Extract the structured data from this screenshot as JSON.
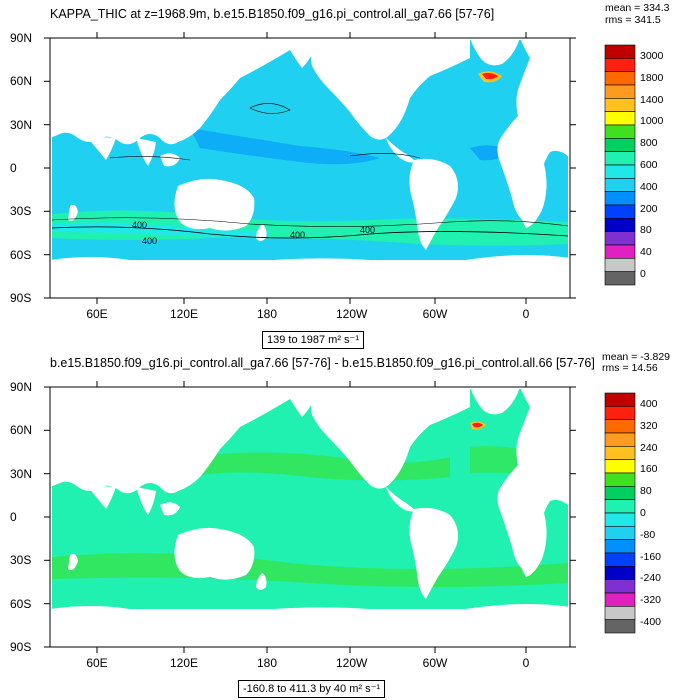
{
  "panel1": {
    "title": "KAPPA_THIC at z=1968.9m, b.e15.B1850.f09_g16.pi_control.all_ga7.66 [57-76]",
    "mean_text": "mean = 334.3",
    "rms_text": "rms = 341.5",
    "range_box": "139 to 1987 m² s⁻¹",
    "contour_labels": [
      "400",
      "400",
      "400",
      "400"
    ],
    "colorbar": {
      "labels": [
        "3000",
        "1800",
        "1400",
        "1000",
        "800",
        "600",
        "400",
        "200",
        "80",
        "40",
        "0"
      ],
      "colors": [
        "#c00000",
        "#ff2010",
        "#ff6a00",
        "#ff9a20",
        "#ffc020",
        "#ffff00",
        "#40e020",
        "#00d060",
        "#20f0b0",
        "#20e8e8",
        "#20d0f0",
        "#0090ff",
        "#0040ff",
        "#0000c8",
        "#8030d0",
        "#e020c0",
        "#c8c8c8",
        "#646464"
      ]
    }
  },
  "panel2": {
    "title": "b.e15.B1850.f09_g16.pi_control.all_ga7.66 [57-76] - b.e15.B1850.f09_g16.pi_control.all.66 [57-76]",
    "mean_text": "mean = -3.829",
    "rms_text": "rms = 14.56",
    "range_box": "-160.8 to 411.3 by 40 m² s⁻¹",
    "colorbar": {
      "labels": [
        "400",
        "320",
        "240",
        "160",
        "80",
        "0",
        "-80",
        "-160",
        "-240",
        "-320",
        "-400"
      ],
      "colors": [
        "#c00000",
        "#ff2010",
        "#ff6a00",
        "#ff9a20",
        "#ffc020",
        "#ffff00",
        "#40e020",
        "#00d060",
        "#20f0b0",
        "#20e8e8",
        "#20d0f0",
        "#0090ff",
        "#0040ff",
        "#0000c8",
        "#8030d0",
        "#e020c0",
        "#c8c8c8",
        "#646464"
      ]
    }
  },
  "lat_ticks": [
    "90N",
    "60N",
    "30N",
    "0",
    "30S",
    "60S",
    "90S"
  ],
  "lon_ticks": [
    "60E",
    "120E",
    "180",
    "120W",
    "60W",
    "0"
  ]
}
